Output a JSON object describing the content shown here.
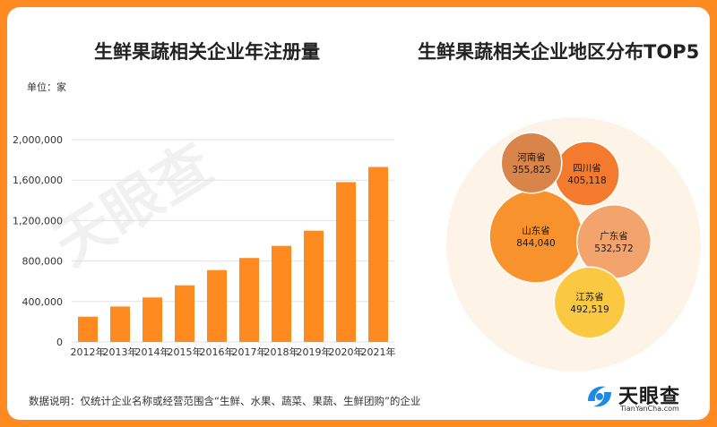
{
  "bar_title": "生鲜果蔬相关企业年注册量",
  "bubble_title": "生鲜果蔬相关企业地区分布TOP5",
  "unit_label": "单位：家",
  "watermark_text": "天眼查",
  "note": "数据说明：仅统计企业名称或经营范围含“生鲜、水果、蔬菜、果蔬、生鲜团购”的企业",
  "logo": {
    "name": "天眼查",
    "sub": "TianYanCha.com"
  },
  "colors": {
    "accent": "#ff8a1f",
    "bar": "#ff8a1f"
  },
  "chart_data": [
    {
      "type": "bar",
      "categories": [
        "2012年",
        "2013年",
        "2014年",
        "2015年",
        "2016年",
        "2017年",
        "2018年",
        "2019年",
        "2020年",
        "2021年"
      ],
      "values": [
        250000,
        350000,
        440000,
        560000,
        710000,
        830000,
        950000,
        1100000,
        1580000,
        1730000
      ],
      "yticks": [
        "0",
        "400,000",
        "800,000",
        "1,200,000",
        "1,600,000",
        "2,000,000"
      ],
      "ylim": [
        0,
        2000000
      ],
      "grid": true
    },
    {
      "type": "bubble",
      "items": [
        {
          "name": "山东省",
          "value": 844040,
          "value_label": "844,040",
          "color": "#f7922c"
        },
        {
          "name": "广东省",
          "value": 532572,
          "value_label": "532,572",
          "color": "#f3a46d"
        },
        {
          "name": "江苏省",
          "value": 492519,
          "value_label": "492,519",
          "color": "#fbc842"
        },
        {
          "name": "四川省",
          "value": 405118,
          "value_label": "405,118",
          "color": "#f47a2e"
        },
        {
          "name": "河南省",
          "value": 355825,
          "value_label": "355,825",
          "color": "#d98449"
        }
      ]
    }
  ]
}
